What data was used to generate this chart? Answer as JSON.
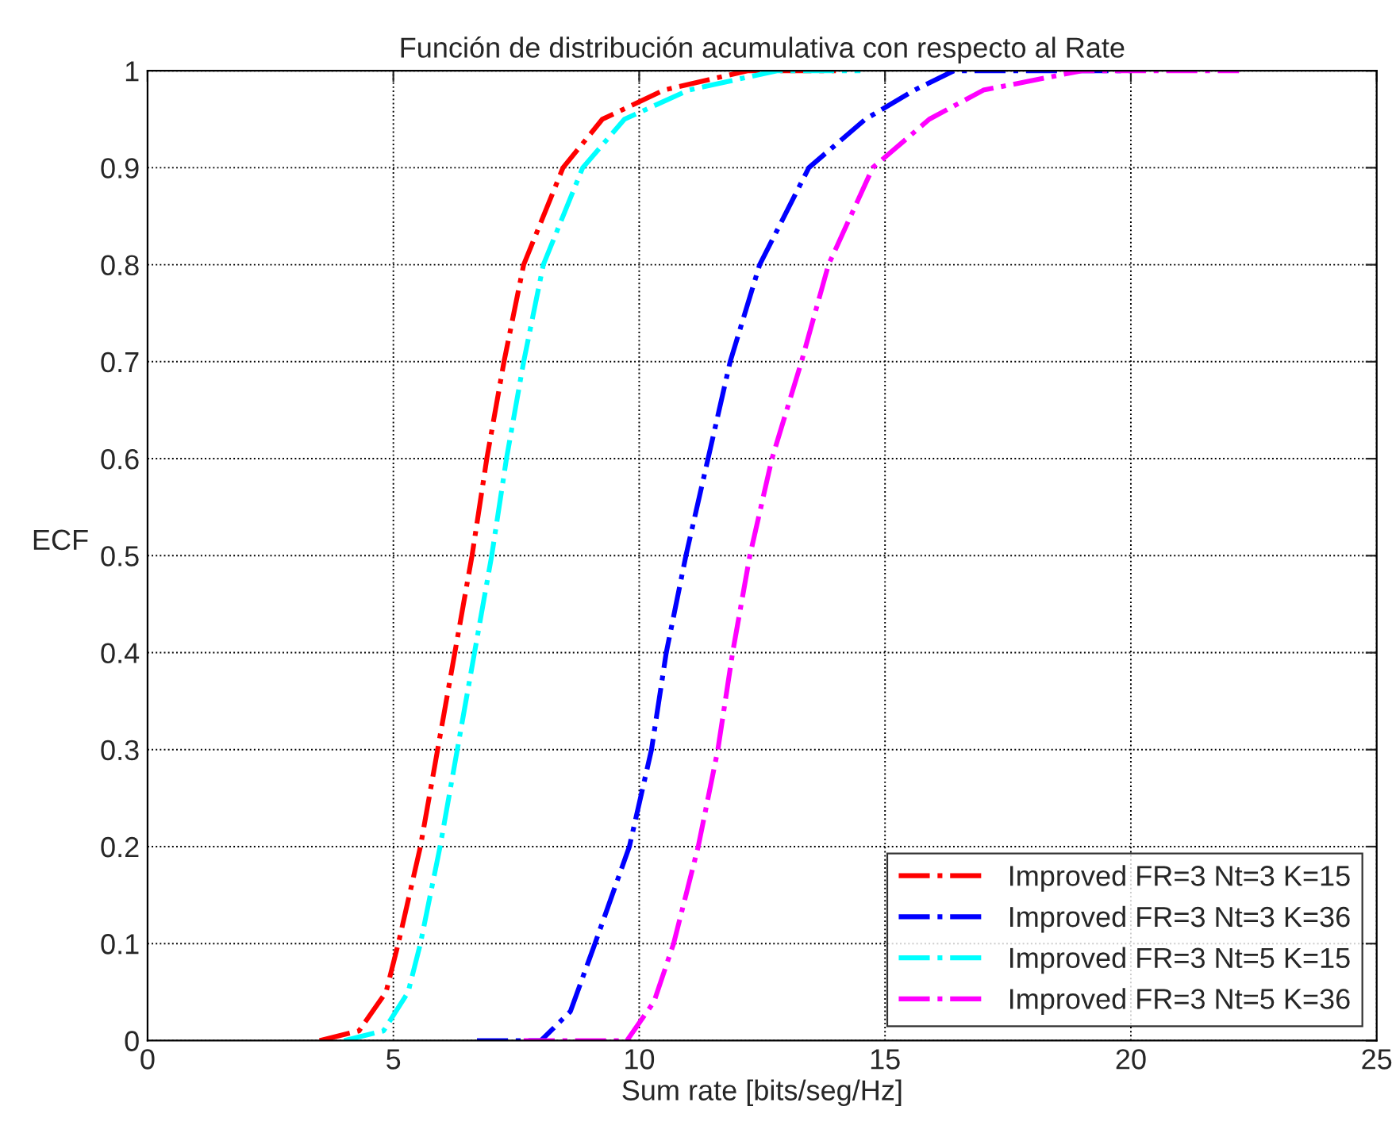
{
  "chart_data": {
    "type": "line",
    "title": "Función de distribución acumulativa con respecto al Rate",
    "xlabel": "Sum rate [bits/seg/Hz]",
    "ylabel": "ECF",
    "xlim": [
      0,
      25
    ],
    "ylim": [
      0,
      1
    ],
    "xticks": [
      0,
      5,
      10,
      15,
      20,
      25
    ],
    "yticks": [
      0,
      0.1,
      0.2,
      0.3,
      0.4,
      0.5,
      0.6,
      0.7,
      0.8,
      0.9,
      1
    ],
    "grid": true,
    "legend": "bottom right",
    "line_style": "dashdot",
    "marker": "none",
    "series": [
      {
        "name": "Improved FR=3 Nt=3 K=15",
        "color": "#ff0000",
        "x": [
          3.5,
          4.3,
          4.85,
          5.1,
          5.55,
          5.9,
          6.25,
          6.6,
          6.9,
          7.25,
          7.65,
          8.45,
          9.25,
          10.5,
          12.2,
          14
        ],
        "values": [
          0,
          0.01,
          0.05,
          0.1,
          0.2,
          0.3,
          0.4,
          0.5,
          0.6,
          0.7,
          0.8,
          0.9,
          0.95,
          0.98,
          1,
          1
        ]
      },
      {
        "name": "Improved FR=3 Nt=3 K=36",
        "color": "#0000ff",
        "x": [
          6.7,
          8.0,
          8.6,
          9.1,
          9.8,
          10.25,
          10.55,
          10.95,
          11.4,
          11.85,
          12.45,
          13.45,
          14.6,
          15.6,
          16.4,
          20
        ],
        "values": [
          0,
          0,
          0.03,
          0.1,
          0.2,
          0.3,
          0.4,
          0.5,
          0.6,
          0.7,
          0.8,
          0.9,
          0.95,
          0.98,
          1,
          1
        ]
      },
      {
        "name": "Improved FR=3 Nt=5 K=15",
        "color": "#00ffff",
        "x": [
          4.0,
          4.8,
          5.3,
          5.55,
          5.95,
          6.3,
          6.65,
          7.0,
          7.3,
          7.65,
          8.05,
          8.85,
          9.7,
          11.0,
          12.8,
          14.5
        ],
        "values": [
          0,
          0.01,
          0.05,
          0.1,
          0.2,
          0.3,
          0.4,
          0.5,
          0.6,
          0.7,
          0.8,
          0.9,
          0.95,
          0.98,
          1,
          1
        ]
      },
      {
        "name": "Improved FR=3 Nt=5 K=36",
        "color": "#ff00ff",
        "x": [
          7.65,
          9.75,
          10.3,
          10.7,
          11.2,
          11.6,
          11.9,
          12.25,
          12.7,
          13.3,
          13.85,
          14.75,
          15.9,
          17.0,
          19.0,
          22.2
        ],
        "values": [
          0,
          0,
          0.04,
          0.1,
          0.2,
          0.3,
          0.4,
          0.5,
          0.6,
          0.7,
          0.8,
          0.9,
          0.95,
          0.98,
          1,
          1
        ]
      }
    ]
  }
}
